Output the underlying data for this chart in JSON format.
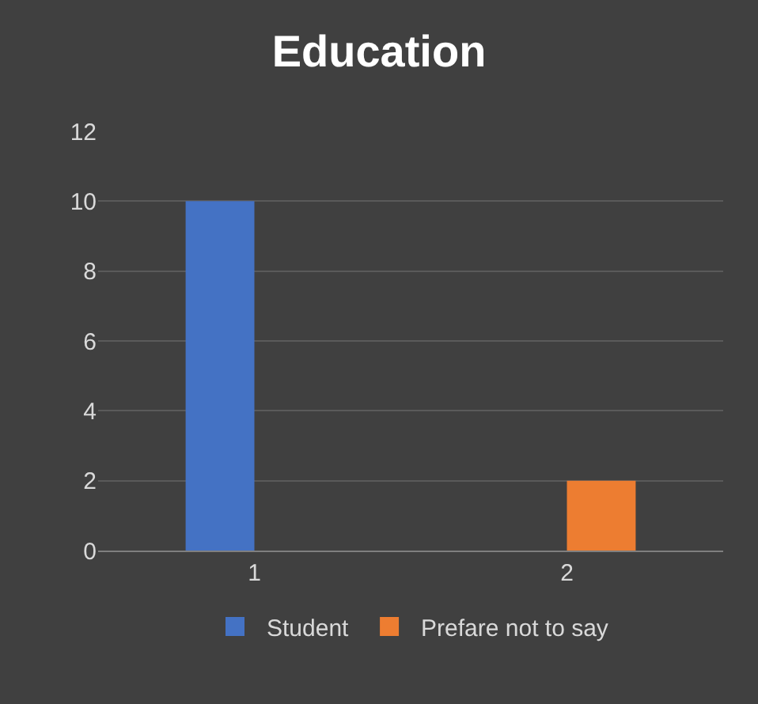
{
  "chart_data": {
    "type": "bar",
    "title": "Education",
    "categories": [
      "1",
      "2"
    ],
    "series": [
      {
        "name": "Student",
        "color": "#4472c4",
        "values": [
          10,
          null
        ]
      },
      {
        "name": "Prefare not to say",
        "color": "#ed7d31",
        "values": [
          null,
          2
        ]
      }
    ],
    "ylim": [
      0,
      12
    ],
    "yticks": [
      0,
      2,
      4,
      6,
      8,
      10,
      12
    ],
    "grid": "y",
    "legend": "bottom"
  }
}
